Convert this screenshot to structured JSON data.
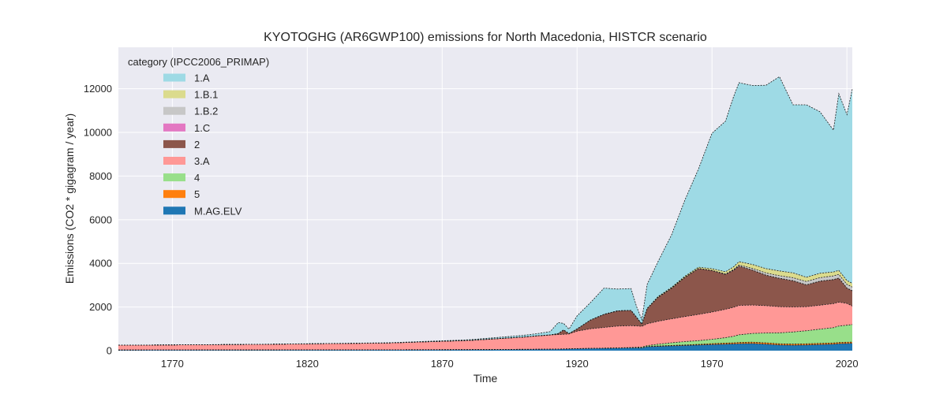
{
  "chart_data": {
    "type": "area",
    "title": "KYOTOGHG (AR6GWP100) emissions for North Macedonia, HISTCR scenario",
    "xlabel": "Time",
    "ylabel": "Emissions (CO2 * gigagram / year)",
    "xlim": [
      1750,
      2022
    ],
    "ylim": [
      0,
      13900
    ],
    "xticks": [
      1770,
      1820,
      1870,
      1920,
      1970,
      2020
    ],
    "yticks": [
      0,
      2000,
      4000,
      6000,
      8000,
      10000,
      12000
    ],
    "grid": true,
    "legend": {
      "title": "category (IPCC2006_PRIMAP)",
      "placement": "top-left"
    },
    "x": [
      1750,
      1800,
      1850,
      1880,
      1900,
      1905,
      1910,
      1913,
      1915,
      1917,
      1920,
      1925,
      1930,
      1935,
      1940,
      1942,
      1944,
      1946,
      1950,
      1955,
      1960,
      1965,
      1970,
      1975,
      1978,
      1980,
      1985,
      1990,
      1995,
      2000,
      2005,
      2010,
      2015,
      2017,
      2020,
      2022
    ],
    "series": [
      {
        "name": "M.AG.ELV",
        "color": "#1f77b4",
        "values": [
          25,
          30,
          35,
          45,
          55,
          60,
          65,
          70,
          75,
          80,
          90,
          100,
          110,
          120,
          130,
          130,
          130,
          180,
          200,
          220,
          240,
          260,
          280,
          300,
          310,
          320,
          330,
          300,
          260,
          250,
          260,
          280,
          300,
          320,
          330,
          340
        ]
      },
      {
        "name": "5",
        "color": "#ff7f0e",
        "values": [
          5,
          5,
          5,
          5,
          5,
          5,
          5,
          5,
          5,
          5,
          5,
          5,
          5,
          5,
          5,
          5,
          5,
          10,
          15,
          20,
          25,
          30,
          40,
          45,
          50,
          55,
          60,
          60,
          55,
          55,
          55,
          55,
          55,
          55,
          55,
          55
        ]
      },
      {
        "name": "4",
        "color": "#98df8a",
        "values": [
          0,
          0,
          0,
          0,
          0,
          0,
          0,
          0,
          0,
          0,
          0,
          0,
          0,
          0,
          10,
          20,
          30,
          40,
          80,
          120,
          150,
          170,
          200,
          250,
          300,
          350,
          400,
          450,
          500,
          550,
          600,
          650,
          700,
          750,
          780,
          800
        ]
      },
      {
        "name": "3.A",
        "color": "#ff9896",
        "values": [
          220,
          250,
          310,
          420,
          560,
          610,
          650,
          660,
          670,
          680,
          800,
          900,
          950,
          1000,
          1000,
          980,
          950,
          1000,
          1050,
          1100,
          1150,
          1200,
          1250,
          1300,
          1330,
          1350,
          1300,
          1250,
          1200,
          1150,
          1100,
          1100,
          1100,
          1100,
          1000,
          850
        ]
      },
      {
        "name": "2",
        "color": "#8c564b",
        "values": [
          0,
          0,
          0,
          0,
          0,
          0,
          0,
          50,
          200,
          20,
          100,
          400,
          600,
          700,
          700,
          400,
          100,
          700,
          1100,
          1400,
          1800,
          2100,
          1900,
          1600,
          1700,
          1800,
          1600,
          1400,
          1300,
          1200,
          1000,
          1100,
          1100,
          1100,
          700,
          700
        ]
      },
      {
        "name": "1.C",
        "color": "#e377c2",
        "values": [
          0,
          0,
          0,
          0,
          0,
          0,
          0,
          0,
          0,
          0,
          0,
          0,
          0,
          0,
          0,
          0,
          0,
          0,
          0,
          0,
          0,
          0,
          0,
          0,
          0,
          0,
          0,
          0,
          0,
          0,
          0,
          0,
          0,
          0,
          0,
          0
        ]
      },
      {
        "name": "1.B.2",
        "color": "#c7c7c7",
        "values": [
          0,
          0,
          0,
          0,
          0,
          0,
          0,
          0,
          0,
          0,
          0,
          0,
          0,
          0,
          0,
          0,
          0,
          0,
          0,
          0,
          0,
          5,
          10,
          20,
          30,
          50,
          80,
          100,
          120,
          140,
          150,
          160,
          170,
          170,
          170,
          170
        ]
      },
      {
        "name": "1.B.1",
        "color": "#dbdb8d",
        "values": [
          0,
          0,
          0,
          0,
          0,
          0,
          0,
          0,
          0,
          0,
          0,
          0,
          0,
          0,
          0,
          0,
          0,
          10,
          30,
          40,
          50,
          60,
          80,
          100,
          120,
          150,
          180,
          200,
          220,
          220,
          200,
          200,
          180,
          180,
          180,
          170
        ]
      },
      {
        "name": "1.A",
        "color": "#9edae5",
        "values": [
          0,
          5,
          10,
          30,
          80,
          100,
          150,
          500,
          300,
          200,
          600,
          800,
          1200,
          1000,
          1000,
          500,
          200,
          1100,
          1600,
          2400,
          3500,
          4500,
          6200,
          6900,
          7800,
          8200,
          8200,
          8400,
          8900,
          7700,
          7900,
          7400,
          6500,
          8100,
          7600,
          8900
        ]
      }
    ]
  }
}
